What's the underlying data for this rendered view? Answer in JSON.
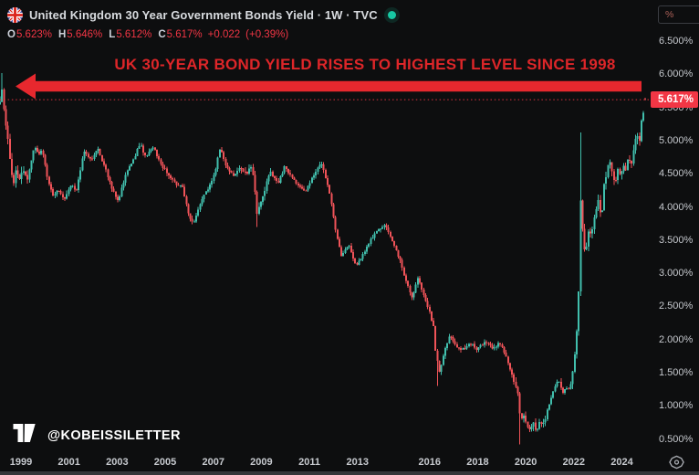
{
  "header": {
    "symbol_title": "United Kingdom 30 Year Government Bonds Yield · 1W · TVC",
    "flag_icon": "uk-flag",
    "market_status": "open",
    "market_status_color": "#17c9a4",
    "ohlc": {
      "open_label": "O",
      "open": "5.623%",
      "high_label": "H",
      "high": "5.646%",
      "low_label": "L",
      "low": "5.612%",
      "close_label": "C",
      "close": "5.617%",
      "change": "+0.022",
      "change_pct": "(+0.39%)"
    }
  },
  "annotation": {
    "headline": "UK 30-YEAR BOND YIELD RISES TO HIGHEST LEVEL SINCE 1998",
    "headline_color": "#de2629",
    "arrow_color": "#e7282e",
    "arrow_direction": "left"
  },
  "watermark": {
    "logo": "tradingview-logo",
    "handle": "@KOBEISSILETTER"
  },
  "price_axis": {
    "unit_button": "%",
    "last_price": "5.617%",
    "last_price_bg": "#f23645",
    "ticks": [
      "6.500%",
      "6.000%",
      "5.500%",
      "5.000%",
      "4.500%",
      "4.000%",
      "3.500%",
      "3.000%",
      "2.500%",
      "2.000%",
      "1.500%",
      "1.000%",
      "0.500%"
    ],
    "settings_icon": "gear-icon"
  },
  "time_axis": {
    "ticks": [
      "1999",
      "2001",
      "2003",
      "2005",
      "2007",
      "2009",
      "2011",
      "2013",
      "2016",
      "2018",
      "2020",
      "2022",
      "2024"
    ]
  },
  "chart_data": {
    "type": "candlestick",
    "title": "United Kingdom 30 Year Government Bonds Yield",
    "timeframe": "1W",
    "exchange": "TVC",
    "units": "percent yield",
    "ylim": [
      0.3,
      6.55
    ],
    "xlim_years": [
      1998.1,
      2025.1
    ],
    "y_ticks": [
      6.5,
      6.0,
      5.5,
      5.0,
      4.5,
      4.0,
      3.5,
      3.0,
      2.5,
      2.0,
      1.5,
      1.0,
      0.5
    ],
    "x_ticks": [
      1999,
      2001,
      2003,
      2005,
      2007,
      2009,
      2011,
      2013,
      2016,
      2018,
      2020,
      2022,
      2024
    ],
    "grid": false,
    "legend": false,
    "price_line": 5.617,
    "price_line_color": "#f23645",
    "up_color": "#41bfad",
    "down_color": "#ef5358",
    "last_bar": {
      "open": 5.623,
      "high": 5.646,
      "low": 5.612,
      "close": 5.617,
      "change": 0.022,
      "change_pct": 0.39
    },
    "keypoints": [
      [
        1998.13,
        5.55
      ],
      [
        1998.17,
        5.98
      ],
      [
        1998.28,
        5.55
      ],
      [
        1998.36,
        5.3
      ],
      [
        1998.47,
        4.95
      ],
      [
        1998.58,
        4.6
      ],
      [
        1998.7,
        4.35
      ],
      [
        1998.81,
        4.65
      ],
      [
        1998.92,
        4.4
      ],
      [
        1999.11,
        4.55
      ],
      [
        1999.26,
        4.4
      ],
      [
        1999.42,
        4.7
      ],
      [
        1999.57,
        4.92
      ],
      [
        1999.72,
        4.8
      ],
      [
        1999.87,
        4.88
      ],
      [
        2000.1,
        4.45
      ],
      [
        2000.33,
        4.15
      ],
      [
        2000.56,
        4.28
      ],
      [
        2000.78,
        4.1
      ],
      [
        2001.09,
        4.35
      ],
      [
        2001.32,
        4.25
      ],
      [
        2001.62,
        4.85
      ],
      [
        2001.92,
        4.7
      ],
      [
        2002.19,
        4.88
      ],
      [
        2002.49,
        4.6
      ],
      [
        2002.8,
        4.25
      ],
      [
        2003.06,
        4.1
      ],
      [
        2003.37,
        4.5
      ],
      [
        2003.67,
        4.7
      ],
      [
        2003.94,
        4.95
      ],
      [
        2004.2,
        4.75
      ],
      [
        2004.51,
        4.9
      ],
      [
        2004.81,
        4.65
      ],
      [
        2005.11,
        4.5
      ],
      [
        2005.42,
        4.35
      ],
      [
        2005.72,
        4.3
      ],
      [
        2005.99,
        3.85
      ],
      [
        2006.18,
        3.72
      ],
      [
        2006.48,
        4.1
      ],
      [
        2006.78,
        4.25
      ],
      [
        2007.09,
        4.55
      ],
      [
        2007.28,
        4.88
      ],
      [
        2007.54,
        4.6
      ],
      [
        2007.85,
        4.45
      ],
      [
        2008.11,
        4.6
      ],
      [
        2008.38,
        4.5
      ],
      [
        2008.61,
        4.65
      ],
      [
        2008.83,
        3.88
      ],
      [
        2009.06,
        4.15
      ],
      [
        2009.37,
        4.55
      ],
      [
        2009.67,
        4.35
      ],
      [
        2009.97,
        4.6
      ],
      [
        2010.28,
        4.45
      ],
      [
        2010.58,
        4.3
      ],
      [
        2010.89,
        4.25
      ],
      [
        2011.19,
        4.5
      ],
      [
        2011.49,
        4.65
      ],
      [
        2011.8,
        4.3
      ],
      [
        2012.1,
        3.6
      ],
      [
        2012.33,
        3.25
      ],
      [
        2012.63,
        3.45
      ],
      [
        2012.93,
        3.1
      ],
      [
        2013.24,
        3.3
      ],
      [
        2013.54,
        3.5
      ],
      [
        2013.85,
        3.65
      ],
      [
        2014.15,
        3.72
      ],
      [
        2014.45,
        3.5
      ],
      [
        2014.76,
        3.2
      ],
      [
        2015.06,
        2.85
      ],
      [
        2015.29,
        2.6
      ],
      [
        2015.52,
        2.95
      ],
      [
        2015.74,
        2.7
      ],
      [
        2015.97,
        2.45
      ],
      [
        2016.16,
        2.2
      ],
      [
        2016.27,
        1.75
      ],
      [
        2016.43,
        1.48
      ],
      [
        2016.62,
        1.85
      ],
      [
        2016.84,
        2.05
      ],
      [
        2017.11,
        1.9
      ],
      [
        2017.41,
        1.85
      ],
      [
        2017.72,
        1.95
      ],
      [
        2018.02,
        1.85
      ],
      [
        2018.32,
        2.0
      ],
      [
        2018.63,
        1.85
      ],
      [
        2018.93,
        1.95
      ],
      [
        2019.24,
        1.7
      ],
      [
        2019.46,
        1.42
      ],
      [
        2019.62,
        1.3
      ],
      [
        2019.7,
        1.12
      ],
      [
        2019.78,
        0.8
      ],
      [
        2019.92,
        0.88
      ],
      [
        2020.07,
        0.7
      ],
      [
        2020.19,
        0.62
      ],
      [
        2020.34,
        0.76
      ],
      [
        2020.45,
        0.6
      ],
      [
        2020.6,
        0.78
      ],
      [
        2020.76,
        0.7
      ],
      [
        2020.91,
        0.95
      ],
      [
        2021.06,
        1.1
      ],
      [
        2021.21,
        1.28
      ],
      [
        2021.36,
        1.4
      ],
      [
        2021.52,
        1.18
      ],
      [
        2021.67,
        1.3
      ],
      [
        2021.82,
        1.22
      ],
      [
        2021.97,
        1.55
      ],
      [
        2022.08,
        1.85
      ],
      [
        2022.16,
        2.35
      ],
      [
        2022.22,
        2.95
      ],
      [
        2022.26,
        4.3
      ],
      [
        2022.31,
        3.95
      ],
      [
        2022.39,
        3.5
      ],
      [
        2022.5,
        3.3
      ],
      [
        2022.62,
        3.65
      ],
      [
        2022.73,
        3.55
      ],
      [
        2022.88,
        3.9
      ],
      [
        2023.03,
        4.1
      ],
      [
        2023.15,
        3.85
      ],
      [
        2023.26,
        4.3
      ],
      [
        2023.37,
        4.5
      ],
      [
        2023.49,
        4.75
      ],
      [
        2023.6,
        4.55
      ],
      [
        2023.72,
        4.35
      ],
      [
        2023.83,
        4.55
      ],
      [
        2023.94,
        4.45
      ],
      [
        2024.06,
        4.65
      ],
      [
        2024.17,
        4.55
      ],
      [
        2024.29,
        4.78
      ],
      [
        2024.4,
        4.62
      ],
      [
        2024.51,
        4.95
      ],
      [
        2024.63,
        5.1
      ],
      [
        2024.7,
        4.92
      ],
      [
        2024.78,
        5.2
      ],
      [
        2024.86,
        5.35
      ],
      [
        2024.93,
        5.45
      ],
      [
        2025.03,
        5.62
      ]
    ],
    "extreme_wicks": [
      {
        "t": 1998.18,
        "side": "high",
        "v": 6.02
      },
      {
        "t": 2008.85,
        "side": "low",
        "v": 3.7
      },
      {
        "t": 2016.34,
        "side": "low",
        "v": 1.3
      },
      {
        "t": 2019.73,
        "side": "low",
        "v": 0.42
      },
      {
        "t": 2022.27,
        "side": "high",
        "v": 5.12
      }
    ]
  }
}
